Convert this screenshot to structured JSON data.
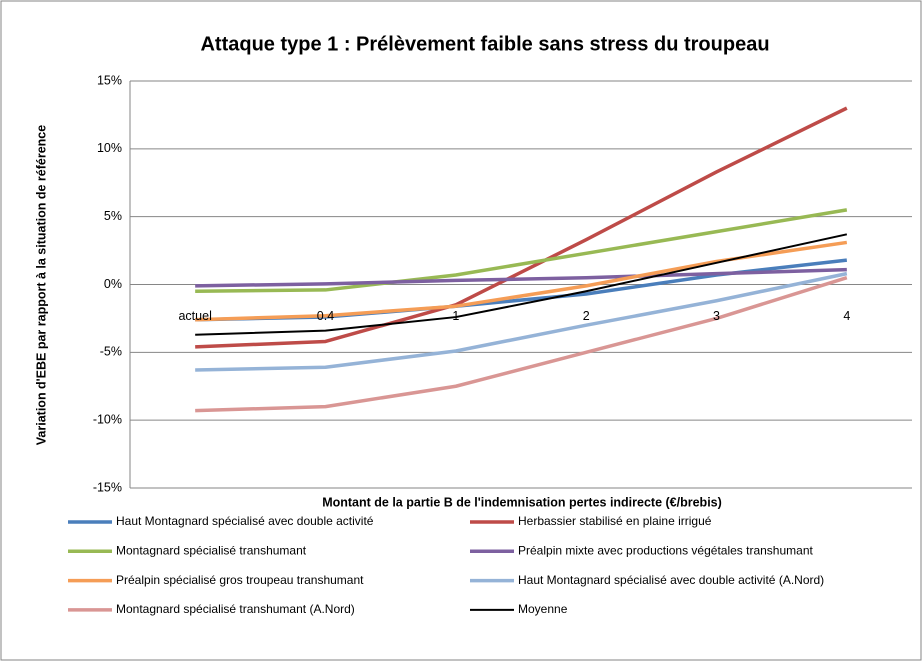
{
  "chart_data": {
    "type": "line",
    "title": "Attaque type 1 : Prélèvement faible sans stress du troupeau",
    "x_label": "Montant de la partie B de l'indemnisation pertes indirecte (€/brebis)",
    "y_label": "Variation d'EBE par rapport à la situation de référence",
    "categories": [
      "actuel",
      "0.4",
      "1",
      "2",
      "3",
      "4"
    ],
    "ylim": [
      -15,
      15
    ],
    "yticks": [
      {
        "value": -15,
        "label": "-15%"
      },
      {
        "value": -10,
        "label": "-10%"
      },
      {
        "value": -5,
        "label": "-5%"
      },
      {
        "value": 0,
        "label": "0%"
      },
      {
        "value": 5,
        "label": "5%"
      },
      {
        "value": 10,
        "label": "10%"
      },
      {
        "value": 15,
        "label": "15%"
      }
    ],
    "grid": true,
    "series": [
      {
        "name": "Haut Montagnard spécialisé avec double activité",
        "color": "#4a7ebb",
        "values": [
          -2.6,
          -2.4,
          -1.6,
          -0.7,
          0.7,
          1.8
        ]
      },
      {
        "name": "Herbassier stabilisé en plaine irrigué",
        "color": "#be4b48",
        "values": [
          -4.6,
          -4.2,
          -1.5,
          3.3,
          8.3,
          13.0
        ]
      },
      {
        "name": "Montagnard spécialisé transhumant",
        "color": "#98b954",
        "values": [
          -0.5,
          -0.4,
          0.7,
          2.3,
          3.9,
          5.5
        ]
      },
      {
        "name": "Préalpin mixte avec productions végétales transhumant",
        "color": "#7d60a0",
        "values": [
          -0.1,
          0.05,
          0.3,
          0.5,
          0.8,
          1.1
        ]
      },
      {
        "name": "Préalpin spécialisé gros troupeau transhumant",
        "color": "#f59d56",
        "values": [
          -2.6,
          -2.3,
          -1.6,
          -0.1,
          1.7,
          3.1
        ]
      },
      {
        "name": "Haut Montagnard spécialisé avec double activité (A.Nord)",
        "color": "#95b3d7",
        "values": [
          -6.3,
          -6.1,
          -4.9,
          -3.0,
          -1.2,
          0.8
        ]
      },
      {
        "name": "Montagnard spécialisé transhumant (A.Nord)",
        "color": "#d99694",
        "values": [
          -9.3,
          -9.0,
          -7.5,
          -5.0,
          -2.5,
          0.5
        ]
      },
      {
        "name": "Moyenne",
        "color": "#000000",
        "values": [
          -3.7,
          -3.4,
          -2.4,
          -0.5,
          1.6,
          3.7
        ]
      }
    ]
  }
}
